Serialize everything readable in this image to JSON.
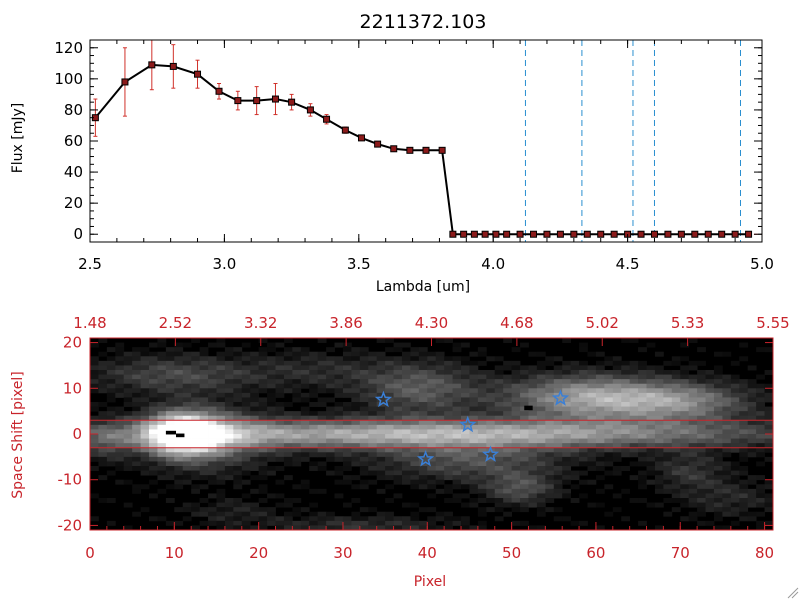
{
  "chart_data": [
    {
      "type": "line",
      "title": "2211372.103",
      "xlabel": "Lambda [um]",
      "ylabel": "Flux [mJy]",
      "xlim": [
        2.5,
        5.0
      ],
      "ylim": [
        -5,
        125
      ],
      "x_ticks": [
        2.5,
        3.0,
        3.5,
        4.0,
        4.5,
        5.0
      ],
      "x_tick_labels": [
        "2.5",
        "3.0",
        "3.5",
        "4.0",
        "4.5",
        "5.0"
      ],
      "y_ticks": [
        0,
        20,
        40,
        60,
        80,
        100,
        120
      ],
      "y_tick_labels": [
        "0",
        "20",
        "40",
        "60",
        "80",
        "100",
        "120"
      ],
      "grid": false,
      "legend": "none",
      "colors": {
        "line": "#000000",
        "marker": "#8b1a1a",
        "error_bar": "#d0302a",
        "vline": "#2a8fd0",
        "zero_line": "#d0302a"
      },
      "series": [
        {
          "x": [
            2.52,
            2.63,
            2.73,
            2.81,
            2.9,
            2.98,
            3.05,
            3.12,
            3.19,
            3.25,
            3.32,
            3.38,
            3.45,
            3.51,
            3.57,
            3.63,
            3.69,
            3.75,
            3.81,
            3.85,
            3.89,
            3.93,
            3.97,
            4.01,
            4.05,
            4.1,
            4.15,
            4.2,
            4.25,
            4.3,
            4.35,
            4.4,
            4.45,
            4.5,
            4.55,
            4.6,
            4.65,
            4.7,
            4.75,
            4.8,
            4.85,
            4.9,
            4.95
          ],
          "values": [
            75,
            98,
            109,
            108,
            103,
            92,
            86,
            86,
            87,
            85,
            80,
            74,
            67,
            62,
            58,
            55,
            54,
            54,
            54,
            0,
            0,
            0,
            0,
            0,
            0,
            0,
            0,
            0,
            0,
            0,
            0,
            0,
            0,
            0,
            0,
            0,
            0,
            0,
            0,
            0,
            0,
            0,
            0
          ],
          "errors": [
            12,
            22,
            16,
            14,
            9,
            5,
            6,
            9,
            10,
            5,
            4,
            3,
            2,
            1,
            1,
            1,
            1,
            1,
            1,
            0,
            0,
            0,
            0,
            0,
            0,
            0,
            0,
            0,
            0,
            0,
            0,
            0,
            0,
            0,
            0,
            0,
            0,
            0,
            0,
            0,
            0,
            0,
            0
          ]
        }
      ],
      "vertical_lines_x": [
        4.12,
        4.33,
        4.52,
        4.6,
        4.92
      ]
    },
    {
      "type": "heatmap",
      "xlabel": "Pixel",
      "ylabel": "Space Shift [pixel]",
      "xlim": [
        0,
        81
      ],
      "ylim": [
        -21,
        21
      ],
      "x_ticks": [
        0,
        10,
        20,
        30,
        40,
        50,
        60,
        70,
        80
      ],
      "x_tick_labels": [
        "0",
        "10",
        "20",
        "30",
        "40",
        "50",
        "60",
        "70",
        "80"
      ],
      "y_ticks": [
        -20,
        -10,
        0,
        10,
        20
      ],
      "y_tick_labels": [
        "-20",
        "-10",
        "0",
        "10",
        "20"
      ],
      "top_axis_tick_labels": [
        "1.48",
        "2.52",
        "3.32",
        "3.86",
        "4.30",
        "4.68",
        "5.02",
        "5.33",
        "5.55"
      ],
      "extraction_band_y": [
        -3,
        3
      ],
      "colormap": "grayscale",
      "colors": {
        "axes": "#c8242b",
        "stars": "#3a7fd6"
      },
      "blobs": [
        {
          "x": 40,
          "y": 0,
          "sx": 28,
          "sy": 2.3,
          "v": 0.7
        },
        {
          "x": 11,
          "y": 0,
          "sx": 3,
          "sy": 3.2,
          "v": 0.95
        },
        {
          "x": 14,
          "y": -1,
          "sx": 5,
          "sy": 5,
          "v": 0.35
        },
        {
          "x": 59,
          "y": 8,
          "sx": 7,
          "sy": 3.5,
          "v": 0.6
        },
        {
          "x": 70,
          "y": 7,
          "sx": 6,
          "sy": 3,
          "v": 0.45
        },
        {
          "x": 39,
          "y": 10,
          "sx": 5,
          "sy": 4,
          "v": 0.35
        },
        {
          "x": 10,
          "y": 13,
          "sx": 7,
          "sy": 3,
          "v": 0.28
        },
        {
          "x": 45,
          "y": -6,
          "sx": 8,
          "sy": 3,
          "v": 0.3
        },
        {
          "x": 51,
          "y": -12,
          "sx": 3,
          "sy": 2.5,
          "v": 0.3
        },
        {
          "x": 71,
          "y": -8,
          "sx": 3,
          "sy": 3,
          "v": 0.2
        },
        {
          "x": 27,
          "y": 14,
          "sx": 6,
          "sy": 3,
          "v": 0.15
        },
        {
          "x": 17,
          "y": -17,
          "sx": 4,
          "sy": 2,
          "v": 0.12
        },
        {
          "x": 32,
          "y": -20,
          "sx": 8,
          "sy": 1.5,
          "v": 0.18
        },
        {
          "x": 76,
          "y": -14,
          "sx": 4,
          "sy": 3,
          "v": 0.15
        },
        {
          "x": 2,
          "y": -2,
          "sx": 2,
          "sy": 3,
          "v": 0.18
        }
      ],
      "stars": [
        {
          "x": 34.8,
          "y": 7.5
        },
        {
          "x": 44.8,
          "y": 2.0
        },
        {
          "x": 39.8,
          "y": -5.5
        },
        {
          "x": 47.5,
          "y": -4.5
        },
        {
          "x": 55.8,
          "y": 7.8
        }
      ]
    }
  ]
}
